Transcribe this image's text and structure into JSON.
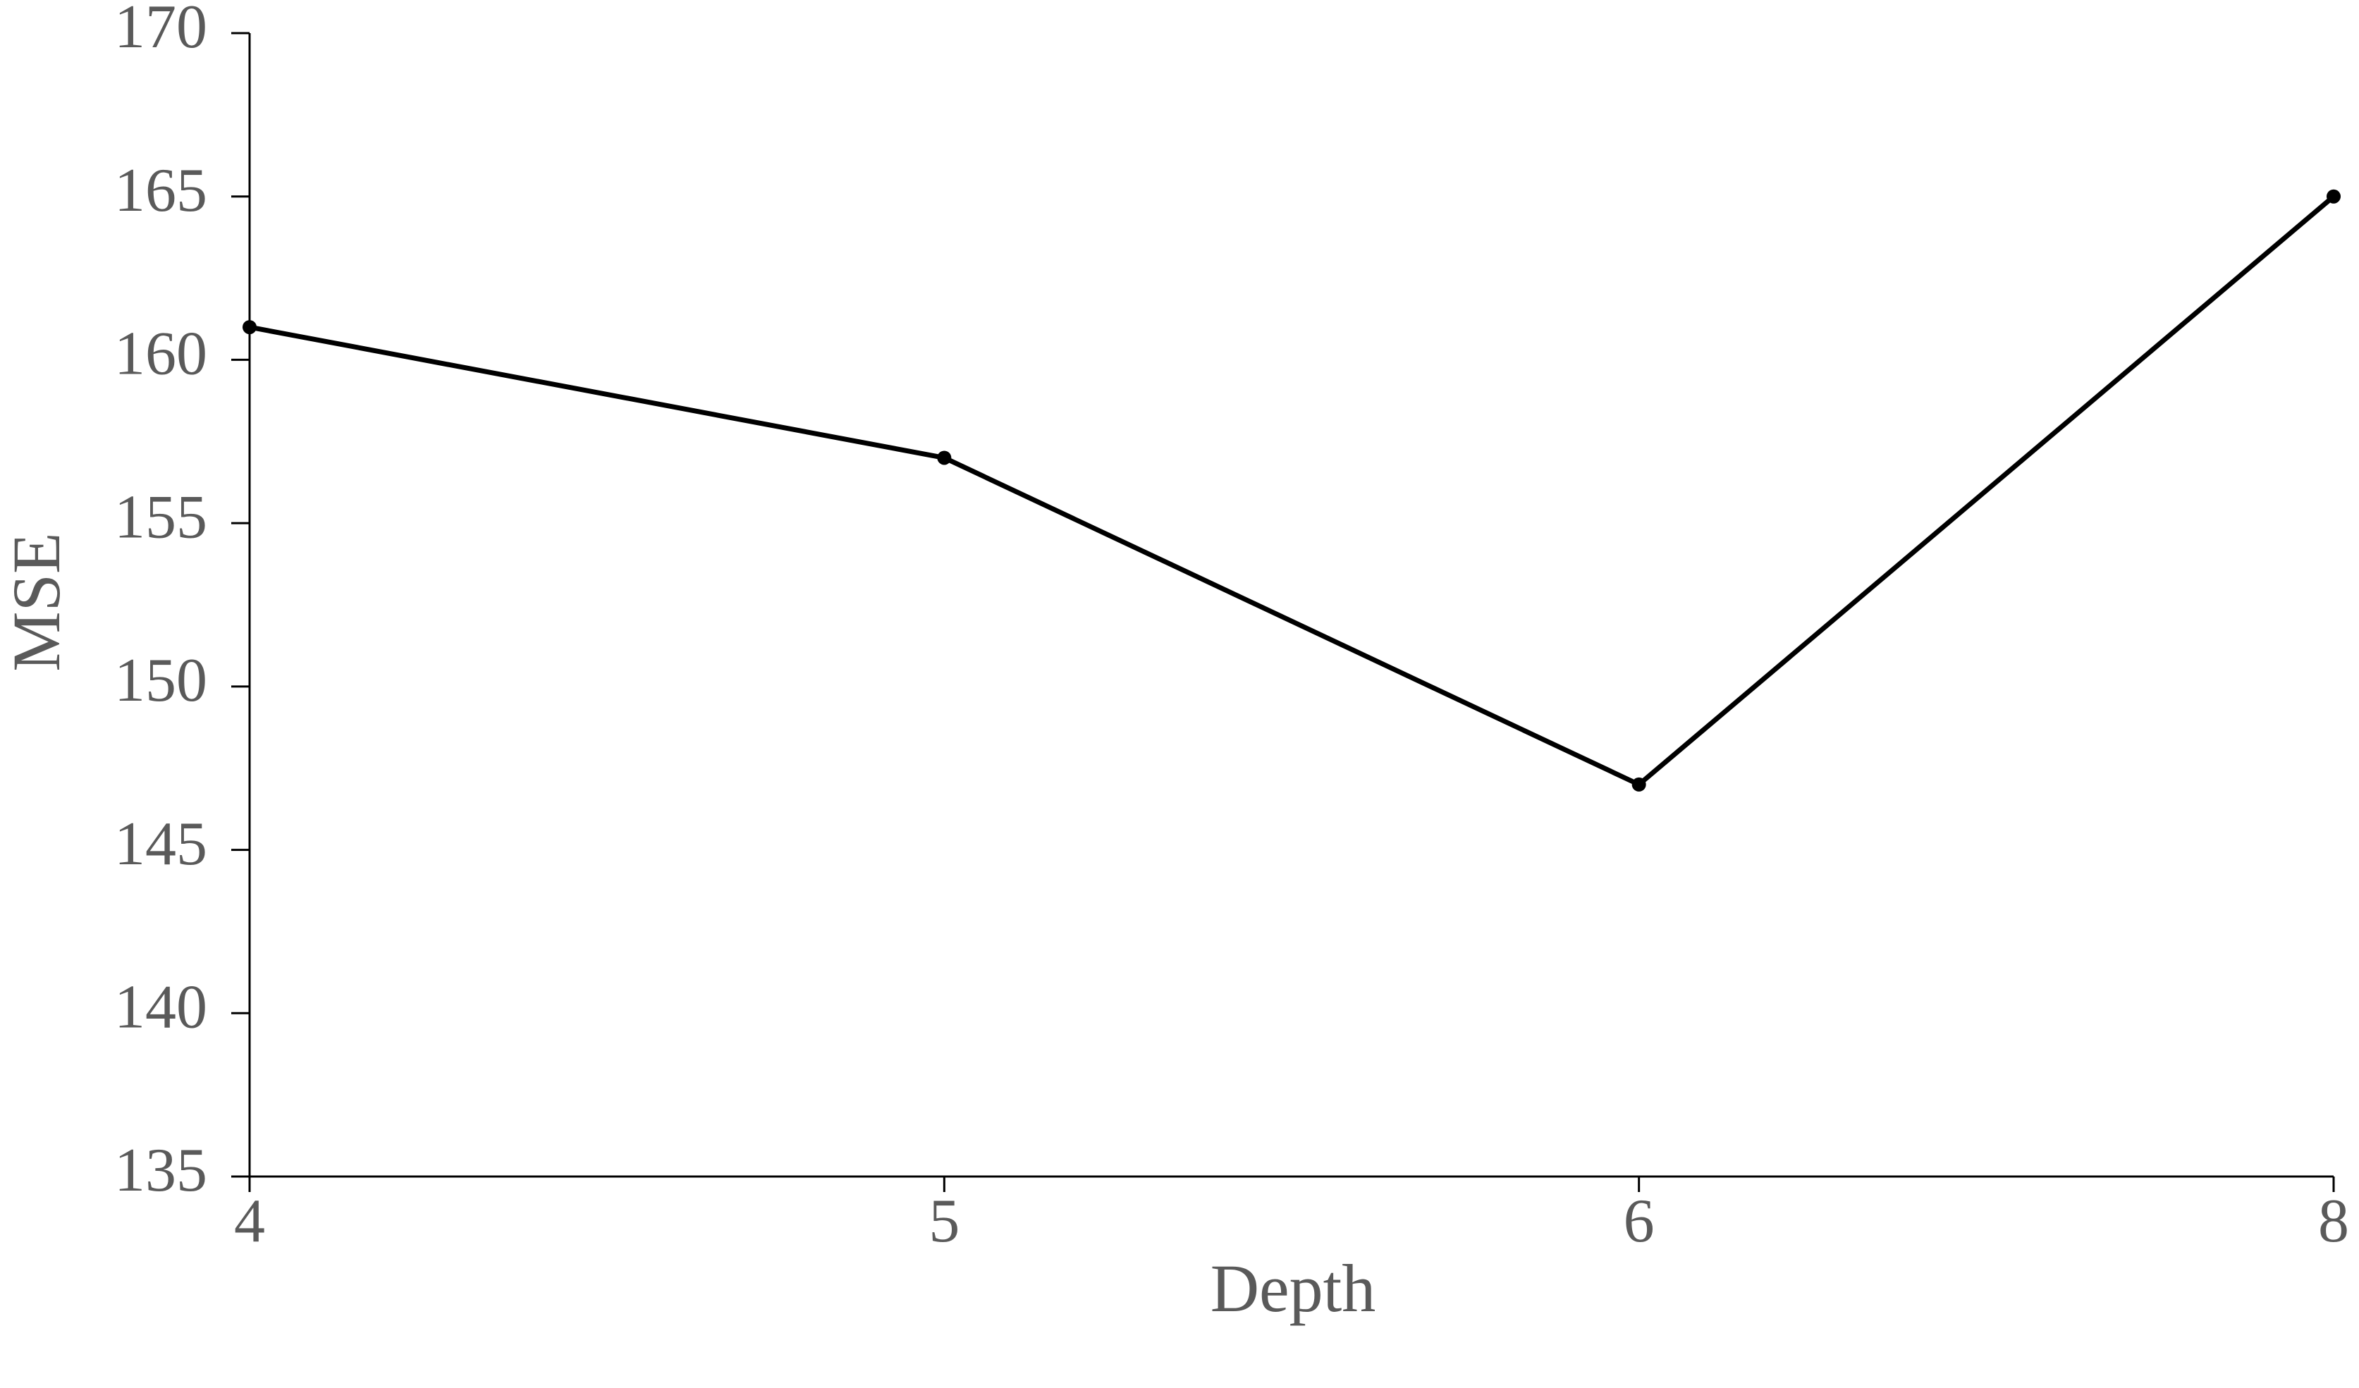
{
  "chart_data": {
    "type": "line",
    "x_label": "Depth",
    "y_label": "MSE",
    "categories": [
      "4",
      "5",
      "6",
      "8"
    ],
    "values": [
      161,
      157,
      147,
      165
    ],
    "color": "#000000",
    "ylim": [
      135,
      170
    ],
    "yticks": [
      135,
      140,
      145,
      150,
      155,
      160,
      165,
      170
    ],
    "grid": false
  }
}
